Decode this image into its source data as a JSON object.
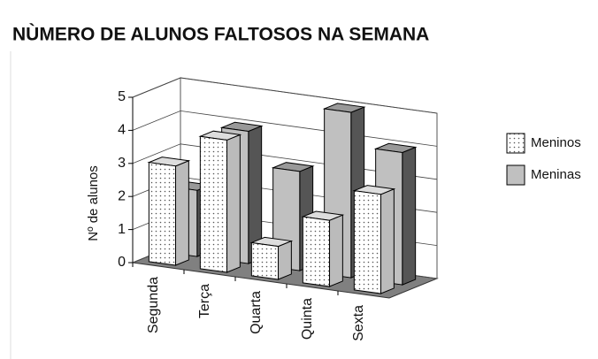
{
  "chart_data": {
    "type": "bar3d",
    "title": "NÙMERO DE ALUNOS FALTOSOS NA SEMANA",
    "y_label": "Nº de alunos",
    "categories": [
      "Segunda",
      "Terça",
      "Quarta",
      "Quinta",
      "Sexta"
    ],
    "series": [
      {
        "name": "Meninos",
        "color": "#ffffff",
        "pattern": "dots",
        "values": [
          3,
          4,
          1,
          2,
          3
        ]
      },
      {
        "name": "Meninas",
        "color": "#c0c0c0",
        "values": [
          2,
          4,
          3,
          5,
          4
        ]
      }
    ],
    "ylim": [
      0,
      5
    ],
    "yticks": [
      0,
      1,
      2,
      3,
      4,
      5
    ],
    "grid": true,
    "legend": "right"
  }
}
